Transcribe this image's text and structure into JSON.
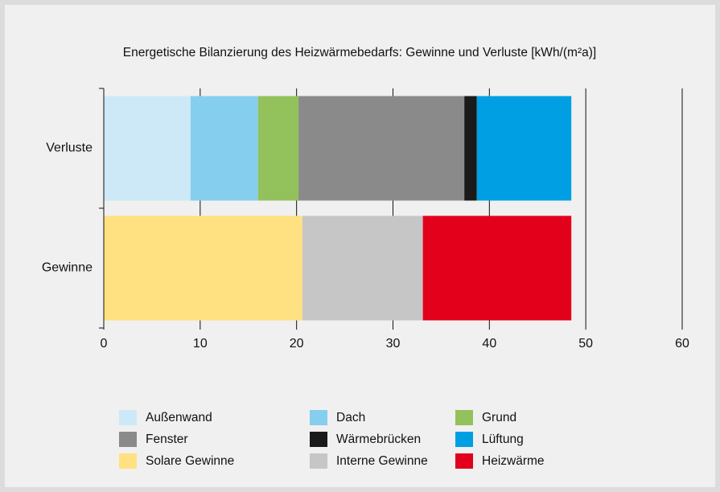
{
  "chart_data": {
    "type": "stacked_barh",
    "title": "Energetische Bilanzierung des Heizwärmebedarfs: Gewinne und Verluste [kWh/(m²a)]",
    "categories": [
      "Verluste",
      "Gewinne"
    ],
    "series": [
      {
        "name": "Außenwand",
        "color": "#cde9f7",
        "values": [
          9.0,
          null
        ]
      },
      {
        "name": "Dach",
        "color": "#86ceee",
        "values": [
          7.0,
          null
        ]
      },
      {
        "name": "Grund",
        "color": "#93c15b",
        "values": [
          4.2,
          null
        ]
      },
      {
        "name": "Fenster",
        "color": "#8a8a8a",
        "values": [
          17.2,
          null
        ]
      },
      {
        "name": "Wärmebrücken",
        "color": "#1a1a1a",
        "values": [
          1.3,
          null
        ]
      },
      {
        "name": "Lüftung",
        "color": "#009fe3",
        "values": [
          9.8,
          null
        ]
      },
      {
        "name": "Solare Gewinne",
        "color": "#ffe181",
        "values": [
          null,
          20.6
        ]
      },
      {
        "name": "Interne Gewinne",
        "color": "#c6c6c6",
        "values": [
          null,
          12.5
        ]
      },
      {
        "name": "Heizwärme",
        "color": "#e2001a",
        "values": [
          null,
          15.4
        ]
      }
    ],
    "xlim": [
      0,
      60
    ],
    "xticks": [
      0,
      10,
      20,
      30,
      40,
      50,
      60
    ],
    "grid": true
  }
}
